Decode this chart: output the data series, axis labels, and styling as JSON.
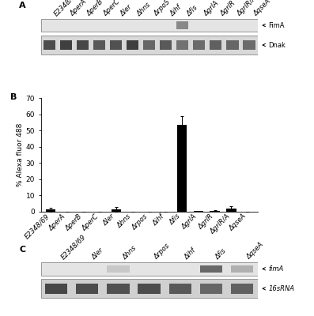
{
  "panel_A": {
    "label": "A",
    "labels_top": [
      "E2348/69",
      "ΔperA",
      "ΔperB",
      "ΔperC",
      "Δler",
      "Δhns",
      "ΔrpoS",
      "Δihf",
      "Δfis",
      "ΔgrlA",
      "ΔgrlR",
      "ΔgrlR/A",
      "ΔqseA"
    ],
    "band1_label": "FimA",
    "band2_label": "Dnak",
    "fimA_bright_lane": 8,
    "n_lanes": 13,
    "dnak_intensities": [
      0.7,
      0.75,
      0.72,
      0.65,
      0.68,
      0.75,
      0.6,
      0.65,
      0.55,
      0.58,
      0.62,
      0.6,
      0.58
    ]
  },
  "panel_B": {
    "label": "B",
    "categories": [
      "E2348/69",
      "ΔperA",
      "ΔperB",
      "ΔperC",
      "Δler",
      "Δhns",
      "Δrpos",
      "Δihf",
      "Δfis",
      "ΔgrlA",
      "ΔgrlR",
      "ΔgrlR/A",
      "ΔqseA"
    ],
    "values": [
      1.3,
      0.1,
      0.1,
      0.1,
      1.4,
      0.1,
      0.1,
      0.1,
      53.5,
      0.5,
      0.7,
      2.1,
      0.1
    ],
    "errors": [
      1.2,
      0.05,
      0.05,
      0.05,
      1.3,
      0.05,
      0.05,
      0.05,
      5.5,
      0.1,
      0.1,
      1.2,
      0.05
    ],
    "ylabel": "% Alexa fluor 488",
    "ylim": [
      0,
      70
    ],
    "yticks": [
      0,
      10,
      20,
      30,
      40,
      50,
      60,
      70
    ],
    "bar_color": "#000000"
  },
  "panel_C": {
    "label": "C",
    "labels_top": [
      "E2348/69",
      "Δler",
      "Δhns",
      "Δrpos",
      "Δihf",
      "Δfis",
      "ΔqseA"
    ],
    "band1_label": "fimA",
    "band2_label": "16sRNA",
    "fimA_bright_lane": 5,
    "n_lanes": 7,
    "rna_intensities": [
      0.72,
      0.7,
      0.68,
      0.7,
      0.65,
      0.6,
      0.62
    ]
  },
  "figure_bg": "#ffffff",
  "font_size_labels": 6.0,
  "font_size_axis": 6.5,
  "font_size_panel_label": 8
}
